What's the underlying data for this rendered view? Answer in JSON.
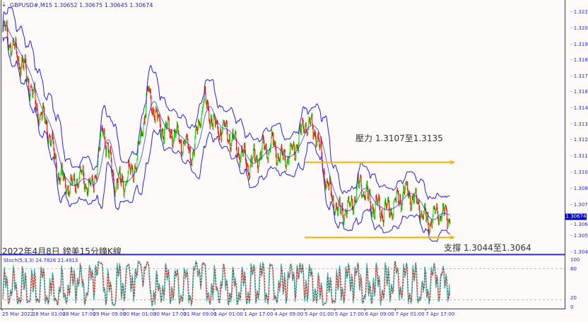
{
  "header": {
    "symbol": "GBPUSD#,M15",
    "ohlc": "1.30652 1.30675 1.30645 1.30674"
  },
  "annotations": {
    "title": "2022年4月8日 鎊美15分鐘K線",
    "resistance": "壓力 1.3107至1.3135",
    "support": "支撐 1.3044至1.3064"
  },
  "colors": {
    "bull": "#00e000",
    "bear": "#ff0000",
    "bands": "#2020f0",
    "arrow": "#ffb000",
    "stoch_main": "#20b0a0",
    "stoch_signal": "#ff0000",
    "axis": "#2a2ad0"
  },
  "chart_data": [
    {
      "type": "candlestick",
      "symbol": "GBPUSD#",
      "timeframe": "M15",
      "ylim": [
        1.3041,
        1.3226
      ],
      "yticks": [
        "1.32200",
        "1.32080",
        "1.31960",
        "1.31840",
        "1.31720",
        "1.31605",
        "1.31485",
        "1.31365",
        "1.31245",
        "1.31125",
        "1.31005",
        "1.30885",
        "1.30765",
        "1.30650",
        "1.30530",
        "1.30410"
      ],
      "current_price": "1.30674",
      "xticks": [
        "25 Mar 2022",
        "28 Mar 01:00",
        "28 Mar 17:00",
        "29 Mar 09:00",
        "30 Mar 01:00",
        "30 Mar 17:00",
        "31 Mar 09:00",
        "1 Apr 01:00",
        "1 Apr 17:00",
        "4 Apr 09:00",
        "5 Apr 01:00",
        "5 Apr 17:00",
        "6 Apr 09:00",
        "7 Apr 01:00",
        "7 Apr 17:00"
      ],
      "approx_close_path": [
        1.32079,
        1.31921,
        1.31763,
        1.315,
        1.31342,
        1.30974,
        1.30895,
        1.30974,
        1.30868,
        1.31342,
        1.30921,
        1.30947,
        1.31079,
        1.31605,
        1.31342,
        1.31316,
        1.31237,
        1.31132,
        1.31553,
        1.31342,
        1.31316,
        1.31184,
        1.31053,
        1.31132,
        1.31211,
        1.31105,
        1.31158,
        1.31368,
        1.31316,
        1.30921,
        1.30711,
        1.30737,
        1.30921,
        1.30763,
        1.30711,
        1.30763,
        1.30868,
        1.30789,
        1.30632,
        1.30711,
        1.30674
      ],
      "overlay": "Bollinger-style envelope bands",
      "levels": [
        {
          "label": "resistance",
          "price": 1.3108,
          "from": "5 Apr 09:00",
          "to": "7 Apr 17:00"
        },
        {
          "label": "support",
          "price": 1.3052,
          "from": "5 Apr 09:00",
          "to": "7 Apr 17:00"
        }
      ]
    },
    {
      "type": "line",
      "title": "Stoch(5,3,3) 24.7826 21.4913",
      "ylim": [
        0,
        100
      ],
      "yticks": [
        "100",
        "80",
        "20",
        "0"
      ],
      "levels": [
        80,
        20
      ],
      "last_main": 24.7826,
      "last_signal": 21.4913
    }
  ]
}
